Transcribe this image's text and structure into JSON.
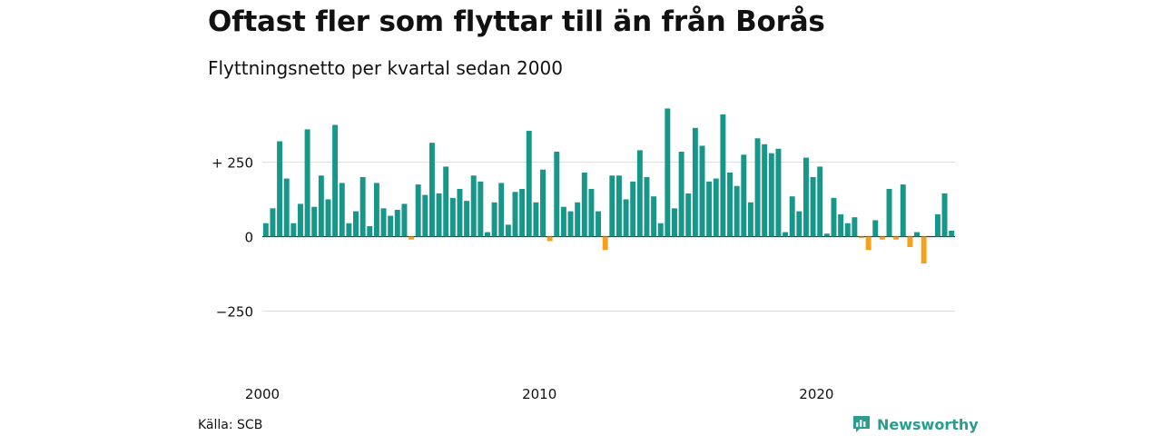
{
  "header": {
    "title": "Oftast fler som flyttar till än från Borås",
    "subtitle": "Flyttningsnetto per kvartal sedan 2000"
  },
  "footer": {
    "source": "Källa: SCB",
    "brand": "Newsworthy",
    "brand_icon": "bar-chart-logo-icon"
  },
  "colors": {
    "positive": "#17968a",
    "negative": "#f5a21b",
    "grid": "#dddddd",
    "brand": "#2a9d8f"
  },
  "chart_data": {
    "type": "bar",
    "title": "Oftast fler som flyttar till än från Borås",
    "subtitle": "Flyttningsnetto per kvartal sedan 2000",
    "xlabel": "",
    "ylabel": "",
    "ylim": [
      -420,
      440
    ],
    "yticks": [
      {
        "value": 250,
        "label": "+ 250"
      },
      {
        "value": 0,
        "label": "0"
      },
      {
        "value": -250,
        "label": "−250"
      }
    ],
    "xticks": [
      {
        "year": 2000,
        "label": "2000"
      },
      {
        "year": 2010,
        "label": "2010"
      },
      {
        "year": 2020,
        "label": "2020"
      }
    ],
    "grid": true,
    "series": [
      {
        "start_year": 2000,
        "start_quarter": 1,
        "values": [
          45,
          95,
          320,
          195,
          45,
          110,
          360,
          100,
          205,
          125,
          375,
          180,
          45,
          85,
          200,
          35,
          180,
          95,
          70,
          90,
          110,
          -10,
          175,
          140,
          315,
          145,
          235,
          130,
          160,
          120,
          205,
          185,
          15,
          115,
          180,
          40,
          150,
          160,
          355,
          115,
          225,
          -15,
          285,
          100,
          85,
          115,
          215,
          160,
          85,
          -45,
          205,
          205,
          125,
          185,
          290,
          200,
          135,
          45,
          430,
          95,
          285,
          145,
          365,
          305,
          185,
          195,
          410,
          215,
          170,
          275,
          115,
          330,
          310,
          280,
          295,
          15,
          135,
          85,
          265,
          200,
          235,
          10,
          130,
          75,
          45,
          65,
          -5,
          -45,
          55,
          -10,
          160,
          -10,
          175,
          -35,
          15,
          -90,
          0,
          75,
          145,
          20
        ]
      }
    ]
  }
}
